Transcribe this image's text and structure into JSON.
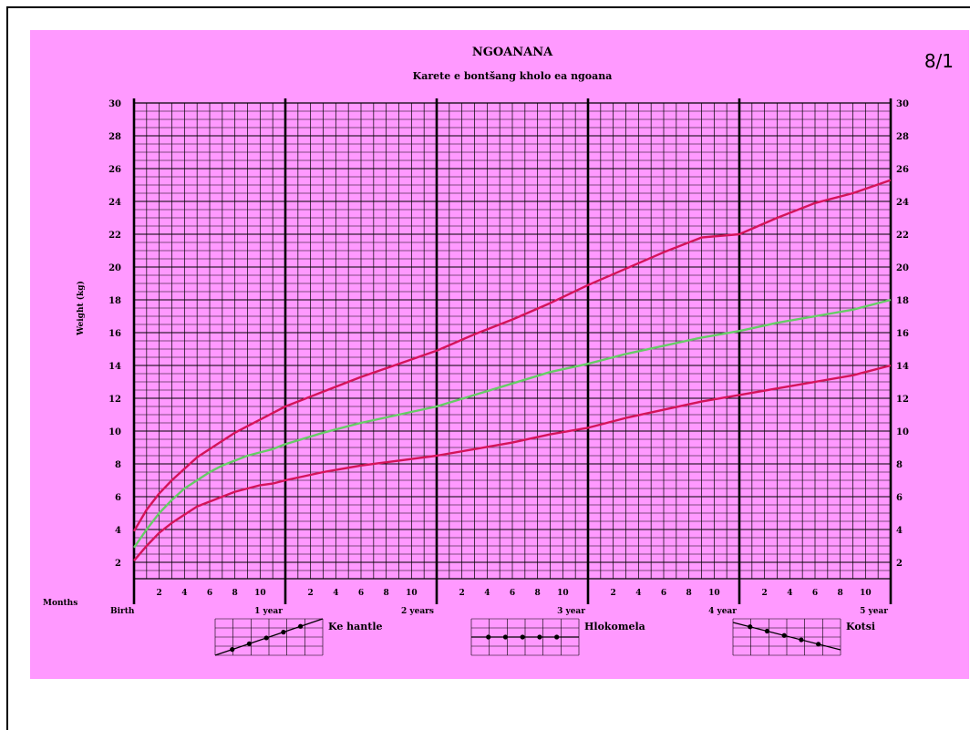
{
  "page_number": "8/1",
  "colors": {
    "background": "#ff99ff",
    "grid": "#000000",
    "outer_curves": "#d4145a",
    "median_curve": "#66cc66"
  },
  "chart_data": {
    "type": "line",
    "title": "NGOANANA",
    "subtitle": "Karete e bontšang kholo ea ngoana",
    "ylabel": "Weight (kg)",
    "xlabel": "Months",
    "xlim": [
      0,
      60
    ],
    "ylim": [
      1,
      30
    ],
    "y_ticks": [
      "2",
      "4",
      "6",
      "8",
      "10",
      "12",
      "14",
      "16",
      "18",
      "20",
      "22",
      "24",
      "26",
      "28",
      "30"
    ],
    "year_labels": [
      {
        "month": 0,
        "label": "Birth"
      },
      {
        "month": 12,
        "label": "1 year"
      },
      {
        "month": 24,
        "label": "2 years"
      },
      {
        "month": 36,
        "label": "3 year"
      },
      {
        "month": 48,
        "label": "4 year"
      },
      {
        "month": 60,
        "label": "5 year"
      }
    ],
    "month_tick_labels": [
      "2",
      "4",
      "6",
      "8",
      "10"
    ],
    "grid": true,
    "series": [
      {
        "role": "upper",
        "color": "#d4145a",
        "x": [
          0,
          1,
          2,
          3,
          4,
          5,
          6,
          7,
          8,
          9,
          10,
          11,
          12,
          15,
          18,
          21,
          24,
          27,
          30,
          33,
          36,
          39,
          42,
          45,
          48,
          51,
          54,
          57,
          60
        ],
        "y": [
          3.9,
          5.2,
          6.2,
          7.0,
          7.7,
          8.4,
          8.9,
          9.4,
          9.9,
          10.3,
          10.7,
          11.1,
          11.5,
          12.4,
          13.3,
          14.1,
          14.9,
          15.9,
          16.8,
          17.8,
          18.9,
          19.9,
          20.9,
          21.8,
          22.0,
          23.0,
          23.9,
          24.5,
          25.3
        ]
      },
      {
        "role": "median",
        "color": "#66cc66",
        "x": [
          0,
          1,
          2,
          3,
          4,
          5,
          6,
          7,
          8,
          9,
          10,
          11,
          12,
          15,
          18,
          21,
          24,
          27,
          30,
          33,
          36,
          39,
          42,
          45,
          48,
          51,
          54,
          57,
          60
        ],
        "y": [
          2.9,
          4.0,
          5.0,
          5.8,
          6.5,
          7.0,
          7.5,
          7.9,
          8.2,
          8.5,
          8.7,
          8.9,
          9.2,
          9.9,
          10.5,
          11.0,
          11.5,
          12.2,
          12.9,
          13.6,
          14.1,
          14.7,
          15.2,
          15.7,
          16.1,
          16.6,
          17.0,
          17.4,
          18.0
        ]
      },
      {
        "role": "lower",
        "color": "#d4145a",
        "x": [
          0,
          1,
          2,
          3,
          4,
          5,
          6,
          7,
          8,
          9,
          10,
          11,
          12,
          15,
          18,
          21,
          24,
          27,
          30,
          33,
          36,
          39,
          42,
          45,
          48,
          51,
          54,
          57,
          60
        ],
        "y": [
          2.1,
          3.0,
          3.8,
          4.4,
          4.9,
          5.4,
          5.7,
          6.0,
          6.3,
          6.5,
          6.7,
          6.8,
          7.0,
          7.5,
          7.9,
          8.2,
          8.5,
          8.9,
          9.3,
          9.8,
          10.2,
          10.8,
          11.3,
          11.8,
          12.2,
          12.6,
          13.0,
          13.4,
          14.0
        ]
      }
    ],
    "legend": [
      {
        "label": "Ke hantle",
        "trend": "up"
      },
      {
        "label": "Hlokomela",
        "trend": "flat"
      },
      {
        "label": "Kotsi",
        "trend": "down"
      }
    ]
  }
}
